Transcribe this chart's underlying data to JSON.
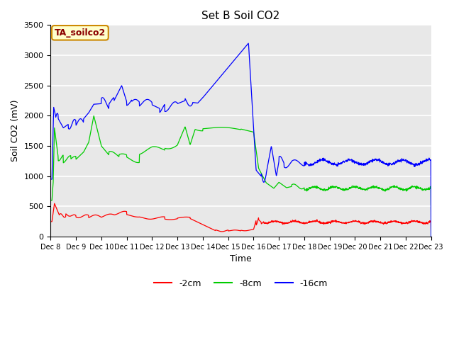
{
  "title": "Set B Soil CO2",
  "ylabel": "Soil CO2 (mV)",
  "xlabel": "Time",
  "annotation_text": "TA_soilco2",
  "annotation_bg": "#ffffcc",
  "annotation_border": "#cc8800",
  "fig_bg": "#ffffff",
  "plot_bg": "#e8e8e8",
  "grid_color": "#ffffff",
  "ylim": [
    0,
    3500
  ],
  "yticks": [
    0,
    500,
    1000,
    1500,
    2000,
    2500,
    3000,
    3500
  ],
  "line_colors": {
    "2cm": "#ff0000",
    "8cm": "#00cc00",
    "16cm": "#0000ff"
  },
  "legend_labels": [
    "-2cm",
    "-8cm",
    "-16cm"
  ],
  "xtick_labels": [
    "Dec 8",
    "Dec 9",
    "Dec 10",
    "Dec 11",
    "Dec 12",
    "Dec 13",
    "Dec 14",
    "Dec 15",
    "Dec 16",
    "Dec 17",
    "Dec 18",
    "Dec 19",
    "Dec 20",
    "Dec 21",
    "Dec 22",
    "Dec 23"
  ]
}
